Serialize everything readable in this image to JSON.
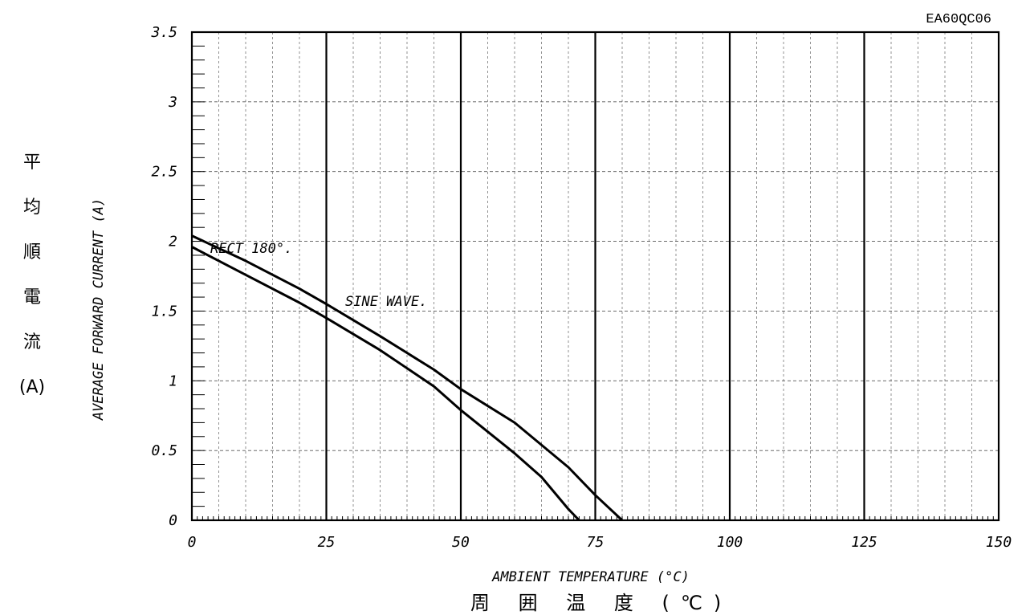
{
  "chart_data": {
    "type": "line",
    "code": "EA60QC06",
    "xlabel": "AMBIENT TEMPERATURE (°C)",
    "xlabel_jp": "周 囲 温 度  (℃)",
    "ylabel": "AVERAGE FORWARD CURRENT (A)",
    "ylabel_jp": [
      "平",
      "均",
      "順",
      "電",
      "流",
      "(A)"
    ],
    "xlim": [
      0,
      150
    ],
    "ylim": [
      0,
      3.5
    ],
    "x_ticks": [
      "0",
      "25",
      "50",
      "75",
      "100",
      "125",
      "150"
    ],
    "y_ticks": [
      "0",
      "0.5",
      "1",
      "1.5",
      "2",
      "2.5",
      "3",
      "3.5"
    ],
    "grid": true,
    "series": [
      {
        "name": "RECT 180°.",
        "points": [
          [
            0,
            2.04
          ],
          [
            10,
            1.86
          ],
          [
            20,
            1.66
          ],
          [
            25,
            1.55
          ],
          [
            35,
            1.32
          ],
          [
            45,
            1.08
          ],
          [
            50,
            0.94
          ],
          [
            60,
            0.7
          ],
          [
            70,
            0.38
          ],
          [
            75,
            0.18
          ],
          [
            80,
            0.0
          ]
        ]
      },
      {
        "name": "SINE WAVE.",
        "points": [
          [
            0,
            1.96
          ],
          [
            10,
            1.76
          ],
          [
            20,
            1.56
          ],
          [
            25,
            1.45
          ],
          [
            35,
            1.22
          ],
          [
            45,
            0.96
          ],
          [
            50,
            0.79
          ],
          [
            60,
            0.48
          ],
          [
            65,
            0.31
          ],
          [
            70,
            0.08
          ],
          [
            72,
            0.0
          ]
        ]
      }
    ]
  }
}
